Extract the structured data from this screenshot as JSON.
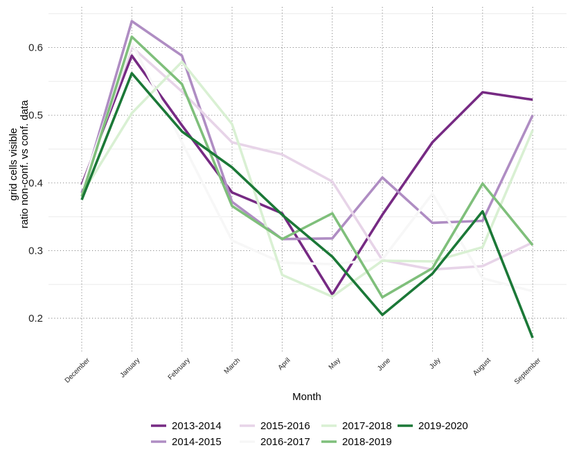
{
  "chart_data": {
    "type": "line",
    "xlabel": "Month",
    "ylabel_lines": [
      "grid cells visible",
      "ratio non-conf. vs conf. data"
    ],
    "categories": [
      "December",
      "January",
      "February",
      "March",
      "April",
      "May",
      "June",
      "July",
      "August",
      "September"
    ],
    "ylim": [
      0.15,
      0.66
    ],
    "yticks": [
      0.2,
      0.3,
      0.4,
      0.5,
      0.6
    ],
    "ytick_labels": [
      "0.2",
      "0.3",
      "0.4",
      "0.5",
      "0.6"
    ],
    "grid": true,
    "legend_position": "bottom",
    "series": [
      {
        "name": "2013-2014",
        "color": "#762a83",
        "values": [
          0.397,
          0.588,
          0.485,
          0.386,
          0.355,
          0.235,
          0.353,
          0.46,
          0.534,
          0.523
        ]
      },
      {
        "name": "2014-2015",
        "color": "#af8dc3",
        "values": [
          0.385,
          0.639,
          0.588,
          0.372,
          0.317,
          0.318,
          0.408,
          0.341,
          0.344,
          0.5
        ]
      },
      {
        "name": "2015-2016",
        "color": "#e7d4e8",
        "values": [
          0.392,
          0.601,
          0.535,
          0.46,
          0.442,
          0.402,
          0.286,
          0.272,
          0.277,
          0.312
        ]
      },
      {
        "name": "2016-2017",
        "color": "#f7f7f7",
        "values": [
          0.392,
          0.607,
          0.46,
          0.315,
          0.282,
          0.28,
          0.287,
          0.384,
          0.259,
          0.24
        ]
      },
      {
        "name": "2017-2018",
        "color": "#d9f0d3",
        "values": [
          0.383,
          0.503,
          0.579,
          0.487,
          0.264,
          0.232,
          0.285,
          0.284,
          0.305,
          0.478
        ]
      },
      {
        "name": "2018-2019",
        "color": "#7fbf7b",
        "values": [
          0.38,
          0.616,
          0.546,
          0.366,
          0.317,
          0.355,
          0.231,
          0.274,
          0.399,
          0.308
        ]
      },
      {
        "name": "2019-2020",
        "color": "#1b7837",
        "values": [
          0.375,
          0.562,
          0.476,
          0.423,
          0.353,
          0.291,
          0.205,
          0.266,
          0.358,
          0.171
        ]
      }
    ]
  }
}
